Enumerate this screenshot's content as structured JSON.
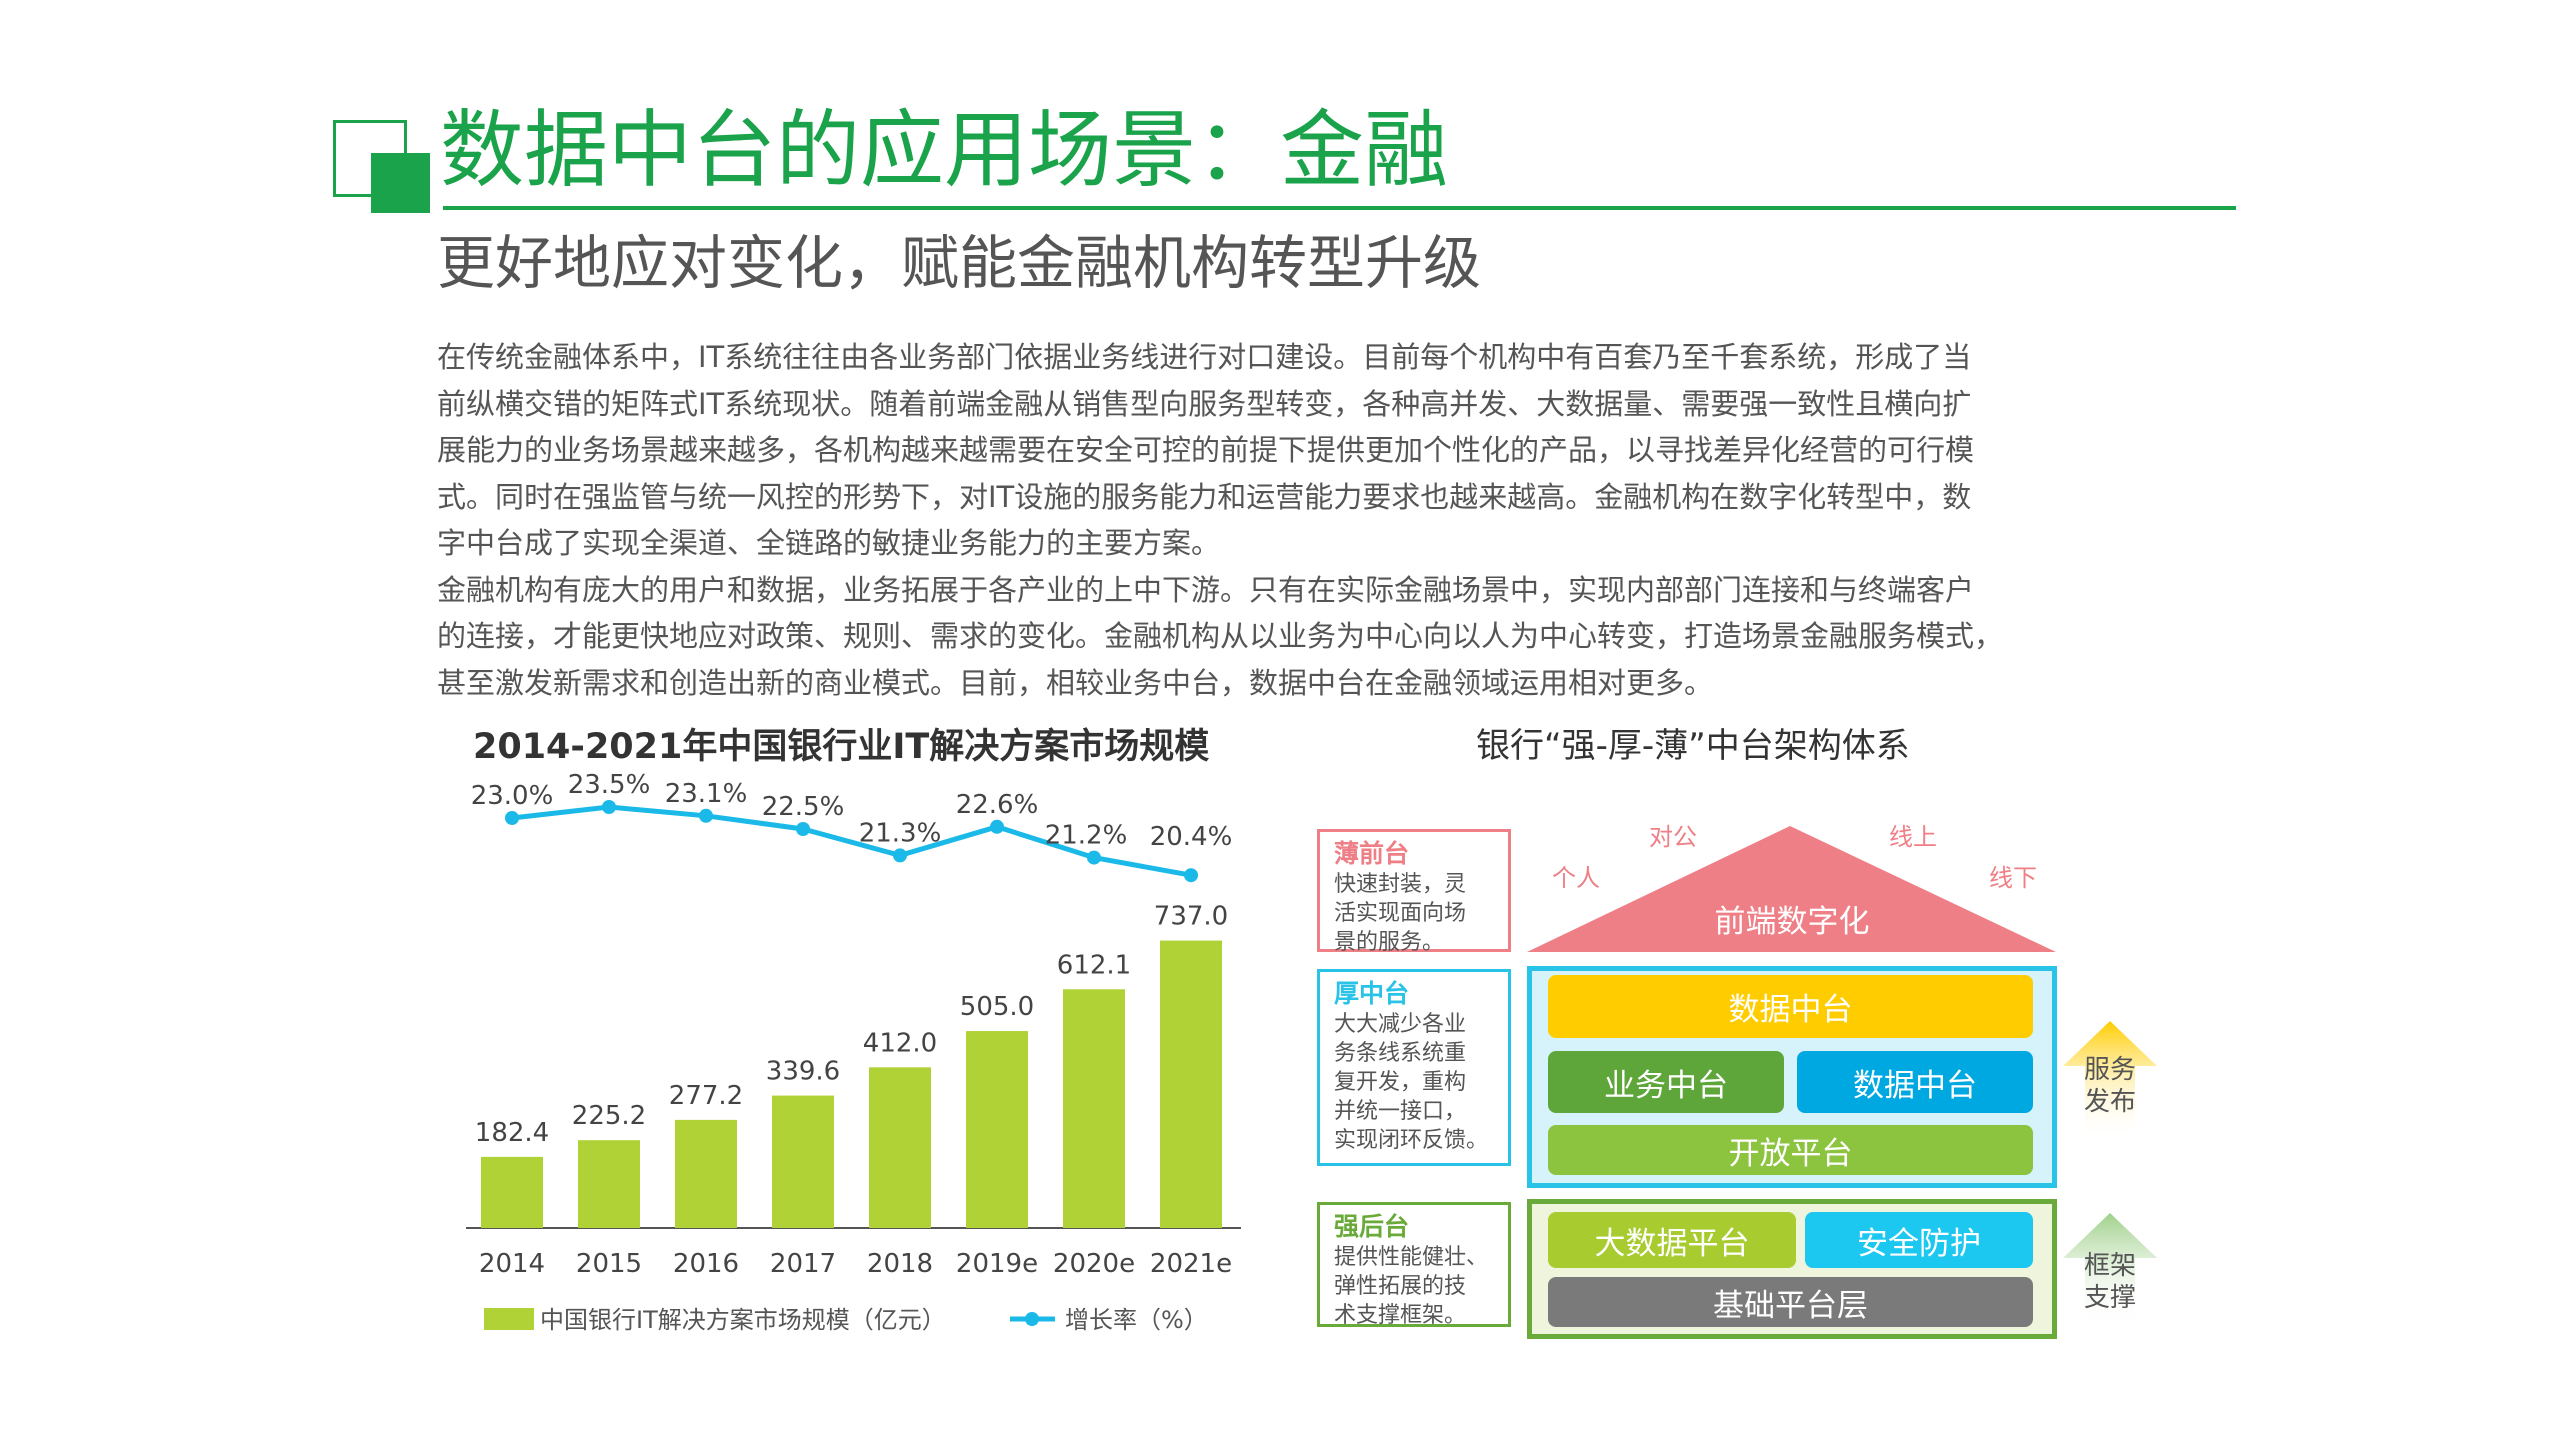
{
  "header": {
    "title": "数据中台的应用场景：金融",
    "subtitle": "更好地应对变化，赋能金融机构转型升级"
  },
  "body": {
    "paragraphs": [
      [
        "在传统金融体系中，IT系统往往由各业务部门依据业务线进行对口建设。目前每个机构中有百套乃至千套系统，形成了当",
        "前纵横交错的矩阵式IT系统现状。随着前端金融从销售型向服务型转变，各种高并发、大数据量、需要强一致性且横向扩",
        "展能力的业务场景越来越多，各机构越来越需要在安全可控的前提下提供更加个性化的产品，以寻找差异化经营的可行模",
        "式。同时在强监管与统一风控的形势下，对IT设施的服务能力和运营能力要求也越来越高。金融机构在数字化转型中，数",
        "字中台成了实现全渠道、全链路的敏捷业务能力的主要方案。"
      ],
      [
        "金融机构有庞大的用户和数据，业务拓展于各产业的上中下游。只有在实际金融场景中，实现内部部门连接和与终端客户",
        "的连接，才能更快地应对政策、规则、需求的变化。金融机构从以业务为中心向以人为中心转变，打造场景金融服务模式，",
        "甚至激发新需求和创造出新的商业模式。目前，相较业务中台，数据中台在金融领域运用相对更多。"
      ]
    ]
  },
  "chart_data": {
    "type": "bar+line",
    "title": "2014-2021年中国银行业IT解决方案市场规模",
    "categories": [
      "2014",
      "2015",
      "2016",
      "2017",
      "2018",
      "2019e",
      "2020e",
      "2021e"
    ],
    "series": [
      {
        "name": "中国银行IT解决方案市场规模（亿元）",
        "type": "bar",
        "color": "#b0d236",
        "values": [
          182.4,
          225.2,
          277.2,
          339.6,
          412.0,
          505.0,
          612.1,
          737.0
        ],
        "labels": [
          "182.4",
          "225.2",
          "277.2",
          "339.6",
          "412.0",
          "505.0",
          "612.1",
          "737.0"
        ]
      },
      {
        "name": "增长率（%）",
        "type": "line",
        "color": "#1ab9e8",
        "values": [
          23.0,
          23.5,
          23.1,
          22.5,
          21.3,
          22.6,
          21.2,
          20.4
        ],
        "labels": [
          "23.0%",
          "23.5%",
          "23.1%",
          "22.5%",
          "21.3%",
          "22.6%",
          "21.2%",
          "20.4%"
        ]
      }
    ],
    "grid": false,
    "legend": "bottom"
  },
  "diagram": {
    "title": "银行“强-厚-薄”中台架构体系",
    "front": {
      "heading": "薄前台",
      "desc": [
        "快速封装，灵",
        "活实现面向场",
        "景的服务。"
      ],
      "roof": "前端数字化",
      "tags": [
        "个人",
        "对公",
        "线上",
        "线下"
      ],
      "color": "#ef7f86"
    },
    "middle": {
      "heading": "厚中台",
      "desc": [
        "大大减少各业",
        "务条线系统重",
        "复开发，重构",
        "并统一接口，",
        "实现闭环反馈。"
      ],
      "blocks": [
        "数据中台",
        "业务中台",
        "数据中台",
        "开放平台"
      ],
      "color": "#29c3e8"
    },
    "back": {
      "heading": "强后台",
      "desc": [
        "提供性能健壮、",
        "弹性拓展的技",
        "术支撑框架。"
      ],
      "blocks": [
        "大数据平台",
        "安全防护",
        "基础平台层"
      ],
      "color": "#6aaa3a"
    },
    "arrows": {
      "service": "服务\n发布",
      "framework": "框架\n支撑"
    }
  }
}
